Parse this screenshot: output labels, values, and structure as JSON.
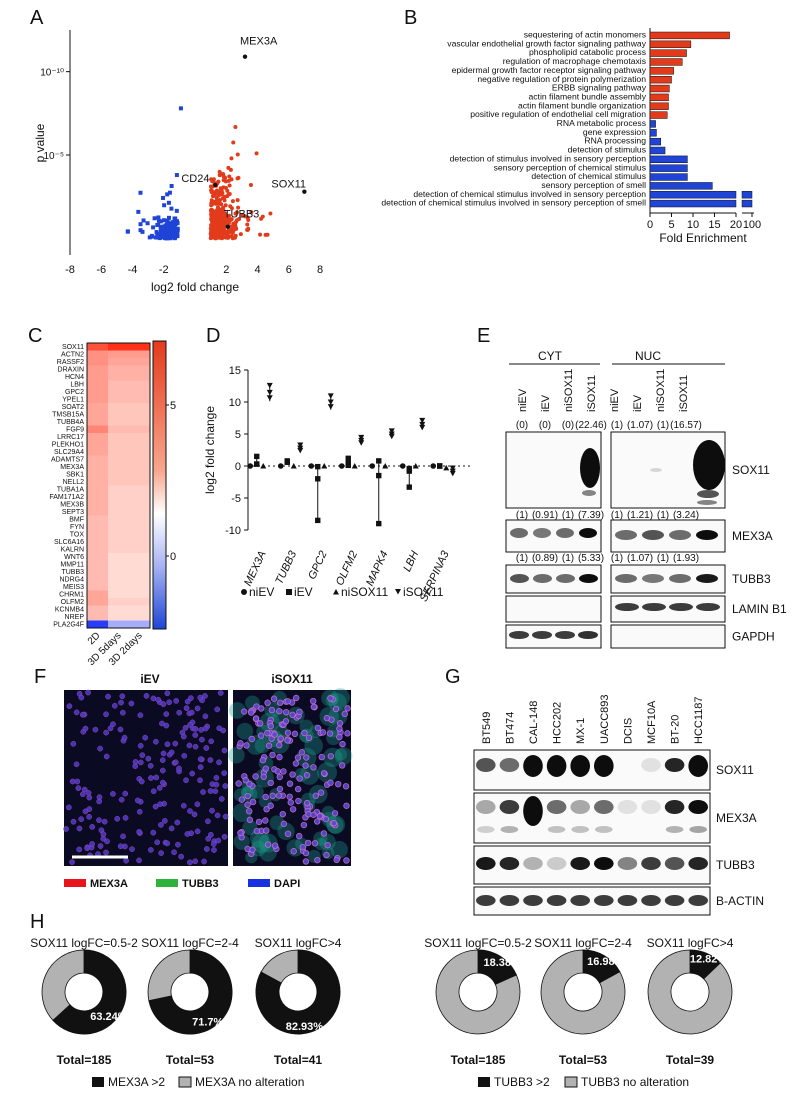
{
  "panel_letters": [
    "A",
    "B",
    "C",
    "D",
    "E",
    "F",
    "G",
    "H"
  ],
  "colors": {
    "up": "#e23b1b",
    "down": "#1f44d6",
    "black": "#111111",
    "grey": "#b2b2b2",
    "teal": "#1e9e8c"
  },
  "panel_a": {
    "ylabel": "p value",
    "xlabel": "log2 fold change",
    "ytick_labels": [
      "10⁻¹⁰",
      "10⁻⁵"
    ],
    "points": [
      {
        "label": "MEX3A",
        "x": 3.2,
        "y": 10.9
      },
      {
        "label": "CD24",
        "x": 1.3,
        "y": 3.2
      },
      {
        "label": "SOX11",
        "x": 7.0,
        "y": 2.8
      },
      {
        "label": "TUBB3",
        "x": 2.1,
        "y": 0.7
      }
    ]
  },
  "chart_data": [
    {
      "type": "scatter",
      "panel": "A",
      "xlabel": "log2 fold change",
      "ylabel": "p value",
      "xlim": [
        -8,
        8
      ],
      "xticks": [
        -8,
        -6,
        -4,
        -2,
        2,
        4,
        6,
        8
      ],
      "ylim": [
        -1,
        12.5
      ],
      "series": [
        {
          "name": "",
          "note_color": "down",
          "count": 150
        },
        {
          "name": "",
          "note_color": "up",
          "count": 360
        }
      ]
    },
    {
      "type": "bar",
      "panel": "B",
      "xlabel": "Fold Enrichment",
      "xticks": [
        0,
        5,
        10,
        15,
        20,
        100
      ],
      "categories": [
        "sequestering of actin monomers",
        "vascular endothelial growth factor signaling pathway",
        "phospholipid catabolic process",
        "regulation of macrophage chemotaxis",
        "epidermal growth factor receptor signaling pathway",
        "negative regulation of protein polymerization",
        "ERBB signaling pathway",
        "actin filament bundle assembly",
        "actin filament bundle organization",
        "positive regulation of endothelial cell migration",
        "RNA metabolic process",
        "gene expression",
        "RNA processing",
        "detection of stimulus",
        "detection of stimulus involved in sensory perception",
        "sensory perception of chemical stimulus",
        "detection of chemical stimulus",
        "sensory perception of smell",
        "detection of chemical stimulus involved in sensory perception",
        "detection of chemical stimulus involved in sensory perception of smell"
      ],
      "values": [
        18.5,
        9.5,
        8.5,
        7.5,
        5.5,
        5.0,
        4.5,
        4.3,
        4.3,
        4.0,
        1.3,
        1.5,
        2.5,
        3.5,
        8.7,
        8.7,
        8.7,
        14.5,
        100,
        100
      ],
      "colors": [
        "up",
        "up",
        "up",
        "up",
        "up",
        "up",
        "up",
        "up",
        "up",
        "up",
        "down",
        "down",
        "down",
        "down",
        "down",
        "down",
        "down",
        "down",
        "down",
        "down"
      ]
    },
    {
      "type": "heatmap",
      "panel": "C",
      "rows": [
        "SOX11",
        "ACTN2",
        "RASSF2",
        "DRAXIN",
        "HCN4",
        "LBH",
        "GPC2",
        "YPEL1",
        "SOAT2",
        "TMSB15A",
        "TUBB4A",
        "FGF9",
        "LRRC17",
        "PLEKHO1",
        "SLC29A4",
        "ADAMTS7",
        "MEX3A",
        "SBK1",
        "NELL2",
        "TUBA1A",
        "FAM171A2",
        "MEX3B",
        "SEPT3",
        "BMF",
        "FYN",
        "TOX",
        "SLC6A16",
        "KALRN",
        "WNT6",
        "MMP11",
        "TUBB3",
        "NDRG4",
        "MEIS3",
        "CHRM1",
        "OLFM2",
        "KCNMB4",
        "NREP",
        "PLA2G4F"
      ],
      "columns": [
        "2D",
        "3D 5days",
        "3D 2days"
      ],
      "colorbar_ticks": [
        5,
        0
      ],
      "values": [
        [
          7.5,
          9,
          9
        ],
        [
          4.5,
          4,
          4
        ],
        [
          4.5,
          3.5,
          3.5
        ],
        [
          4,
          3,
          3
        ],
        [
          4,
          3,
          3
        ],
        [
          4,
          2.5,
          2.5
        ],
        [
          4,
          2.5,
          2.5
        ],
        [
          4,
          2.5,
          2.5
        ],
        [
          3.5,
          2,
          2
        ],
        [
          3.5,
          2,
          2
        ],
        [
          3.5,
          2,
          2
        ],
        [
          5,
          2.5,
          2.5
        ],
        [
          3.5,
          2,
          2
        ],
        [
          3.5,
          2,
          2
        ],
        [
          3.5,
          2,
          2
        ],
        [
          3,
          2,
          2
        ],
        [
          3,
          2,
          2
        ],
        [
          3,
          2,
          2
        ],
        [
          3,
          2,
          2
        ],
        [
          3,
          1.5,
          1.5
        ],
        [
          3,
          1.5,
          1.5
        ],
        [
          3,
          1.5,
          1.5
        ],
        [
          3,
          1.5,
          1.5
        ],
        [
          2.5,
          1.5,
          1.5
        ],
        [
          2.5,
          1.5,
          1.5
        ],
        [
          2.5,
          1.5,
          1.5
        ],
        [
          2.5,
          1.5,
          1.5
        ],
        [
          2.5,
          1.5,
          1.5
        ],
        [
          2.5,
          1,
          1
        ],
        [
          2.5,
          1,
          1
        ],
        [
          2.5,
          1,
          1
        ],
        [
          2.5,
          1,
          1
        ],
        [
          2.5,
          1,
          1
        ],
        [
          3.5,
          1,
          1
        ],
        [
          3.5,
          1.5,
          1.5
        ],
        [
          2.5,
          1,
          1
        ],
        [
          2.5,
          1,
          1
        ],
        [
          -8,
          -3,
          -3
        ]
      ]
    },
    {
      "type": "scatter",
      "panel": "D",
      "ylabel": "log2 fold change",
      "ylim": [
        -10,
        15
      ],
      "yticks": [
        -10,
        -5,
        0,
        5,
        10,
        15
      ],
      "categories": [
        "MEX3A",
        "TUBB3",
        "GPC2",
        "OLFM2",
        "MAPK4",
        "LBH",
        "SERPINA3"
      ],
      "series": [
        {
          "name": "niEV",
          "values": [
            0,
            0,
            0,
            0,
            0,
            0,
            0
          ]
        },
        {
          "name": "iEV",
          "values": [
            0.3,
            0.6,
            -2.0,
            0.4,
            -1.5,
            -0.8,
            0
          ]
        },
        {
          "name": "niSOX11",
          "values": [
            0,
            0,
            0,
            0,
            0,
            0,
            -0.3
          ]
        },
        {
          "name": "iSOX11",
          "values": [
            11.5,
            2.8,
            10.0,
            4.0,
            5.0,
            6.5,
            -0.8
          ]
        }
      ]
    },
    {
      "type": "pie",
      "panel": "H",
      "subplots": [
        {
          "title": "SOX11 logFC=0.5-2",
          "percent_label": "63.24%",
          "value": 63.24,
          "total": "Total=185"
        },
        {
          "title": "SOX11 logFC=2-4",
          "percent_label": "71.7%",
          "value": 71.7,
          "total": "Total=53"
        },
        {
          "title": "SOX11 logFC>4",
          "percent_label": "82.93%",
          "value": 82.93,
          "total": "Total=41"
        },
        {
          "title": "SOX11 logFC=0.5-2",
          "percent_label": "18.38%",
          "value": 18.38,
          "total": "Total=185"
        },
        {
          "title": "SOX11 logFC=2-4",
          "percent_label": "16.98%",
          "value": 16.98,
          "total": "Total=53"
        },
        {
          "title": "SOX11 logFC>4",
          "percent_label": "12.82%",
          "value": 12.82,
          "total": "Total=39"
        }
      ],
      "legends": [
        [
          "MEX3A >2",
          "MEX3A no alteration"
        ],
        [
          "TUBB3 >2",
          "TUBB3 no alteration"
        ]
      ]
    }
  ],
  "panel_d_legend": [
    "niEV",
    "iEV",
    "niSOX11",
    "iSOX11"
  ],
  "panel_e": {
    "groups": [
      "CYT",
      "NUC"
    ],
    "lanes": [
      "niEV",
      "iEV",
      "niSOX11",
      "iSOX11",
      "niEV",
      "iEV",
      "niSOX11",
      "iSOX11"
    ],
    "quant_sox11": [
      "(0)",
      "(0)",
      "(0)",
      "(22.46)",
      "(1)",
      "(1.07)",
      "(1)",
      "(16.57)"
    ],
    "quant_mex3a": [
      "(1)",
      "(0.91)",
      "(1)",
      "(7.39)",
      "(1)",
      "(1.21)",
      "(1)",
      "(3.24)"
    ],
    "quant_tubb3": [
      "(1)",
      "(0.89)",
      "(1)",
      "(5.33)",
      "(1)",
      "(1.07)",
      "(1)",
      "(1.93)"
    ],
    "blots": [
      "SOX11",
      "MEX3A",
      "TUBB3",
      "LAMIN B1",
      "GAPDH"
    ]
  },
  "panel_f": {
    "titles": [
      "iEV",
      "iSOX11"
    ],
    "legend": [
      "MEX3A",
      "TUBB3",
      "DAPI"
    ]
  },
  "panel_g": {
    "lanes": [
      "BT549",
      "BT474",
      "CAL-148",
      "HCC202",
      "MX-1",
      "UACC893",
      "DCIS",
      "MCF10A",
      "BT-20",
      "HCC1187"
    ],
    "blots": [
      "SOX11",
      "MEX3A",
      "TUBB3",
      "B-ACTIN"
    ]
  }
}
